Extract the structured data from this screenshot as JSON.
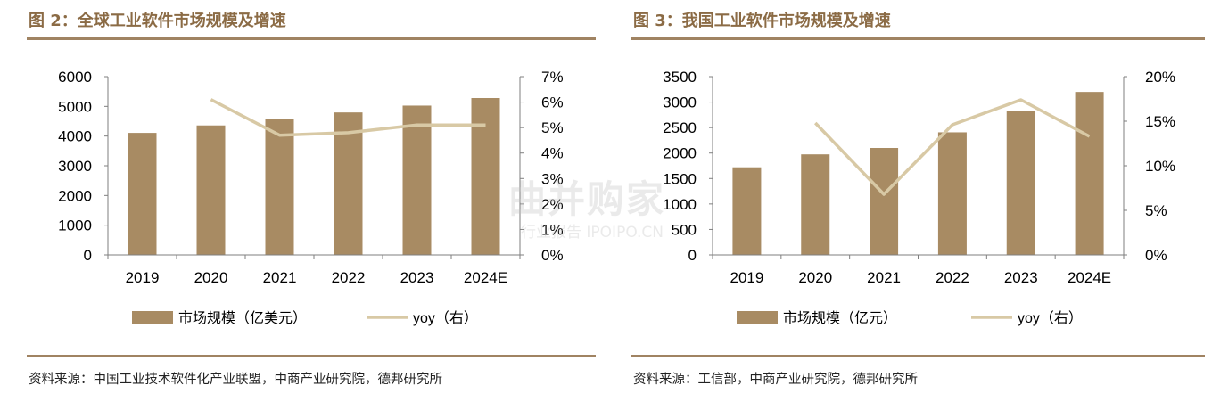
{
  "figures": [
    {
      "title": "图 2：全球工业软件市场规模及增速",
      "source": "资料来源：中国工业技术软件化产业联盟，中商产业研究院，德邦研究所",
      "legend_bar": "市场规模（亿美元）",
      "legend_line": "yoy（右）"
    },
    {
      "title": "图 3：我国工业软件市场规模及增速",
      "source": "资料来源：工信部，中商产业研究院，德邦研究所",
      "legend_bar": "市场规模（亿元）",
      "legend_line": "yoy（右）"
    }
  ],
  "watermark": {
    "main": "曲并购家",
    "sub": "行业报告 IPOIPO.CN"
  },
  "colors": {
    "bar": "#a88b63",
    "line": "#d8c9a5",
    "accent": "#8b6b45",
    "rule": "#a08362"
  },
  "chart_data": [
    {
      "type": "bar",
      "categories": [
        "2019",
        "2020",
        "2021",
        "2022",
        "2023",
        "2024E"
      ],
      "series": [
        {
          "name": "市场规模（亿美元）",
          "type": "bar",
          "axis": "left",
          "values": [
            4107,
            4358,
            4561,
            4795,
            5026,
            5280
          ]
        },
        {
          "name": "yoy（右）",
          "type": "line",
          "axis": "right",
          "values": [
            null,
            6.1,
            4.7,
            4.8,
            5.1,
            5.1
          ]
        }
      ],
      "ylim": [
        0,
        6000
      ],
      "y_ticks": [
        "0",
        "1000",
        "2000",
        "3000",
        "4000",
        "5000",
        "6000"
      ],
      "y2lim": [
        0,
        7
      ],
      "y2_ticks": [
        "0%",
        "1%",
        "2%",
        "3%",
        "4%",
        "5%",
        "6%",
        "7%"
      ],
      "grid": false,
      "legend": "bottom"
    },
    {
      "type": "bar",
      "categories": [
        "2019",
        "2020",
        "2021",
        "2022",
        "2023",
        "2024E"
      ],
      "series": [
        {
          "name": "市场规模（亿元）",
          "type": "bar",
          "axis": "left",
          "values": [
            1720,
            1974,
            2100,
            2407,
            2824,
            3200
          ]
        },
        {
          "name": "yoy（右）",
          "type": "line",
          "axis": "right",
          "values": [
            null,
            14.8,
            6.8,
            14.6,
            17.4,
            13.3
          ]
        }
      ],
      "ylim": [
        0,
        3500
      ],
      "y_ticks": [
        "0",
        "500",
        "1000",
        "1500",
        "2000",
        "2500",
        "3000",
        "3500"
      ],
      "y2lim": [
        0,
        20
      ],
      "y2_ticks": [
        "0%",
        "5%",
        "10%",
        "15%",
        "20%"
      ],
      "grid": false,
      "legend": "bottom"
    }
  ]
}
